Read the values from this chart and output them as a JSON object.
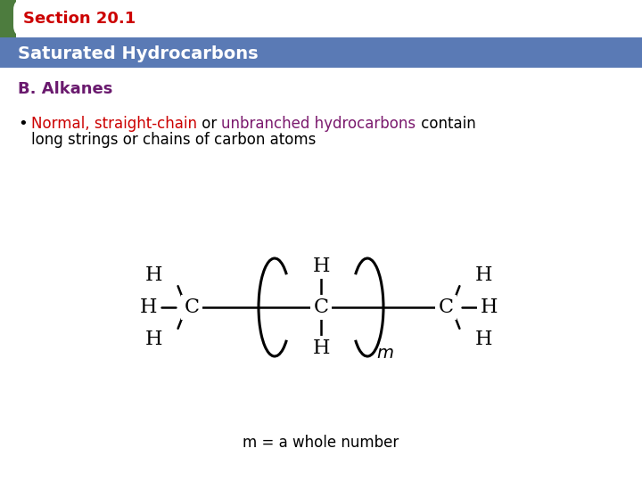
{
  "title_tab": "Section 20.1",
  "subtitle": "Saturated Hydrocarbons",
  "section_label": "B. Alkanes",
  "tab_bg": "#4d7c3e",
  "tab_text_color": "#cc0000",
  "header_bg": "#5a7ab5",
  "header_text_color": "#ffffff",
  "bg_color": "#ffffff",
  "body_text_color": "#000000",
  "section_color": "#6a1a6e",
  "red_text": "#cc0000",
  "purple_text": "#7b1a6e",
  "m_label": "m = a whole number"
}
